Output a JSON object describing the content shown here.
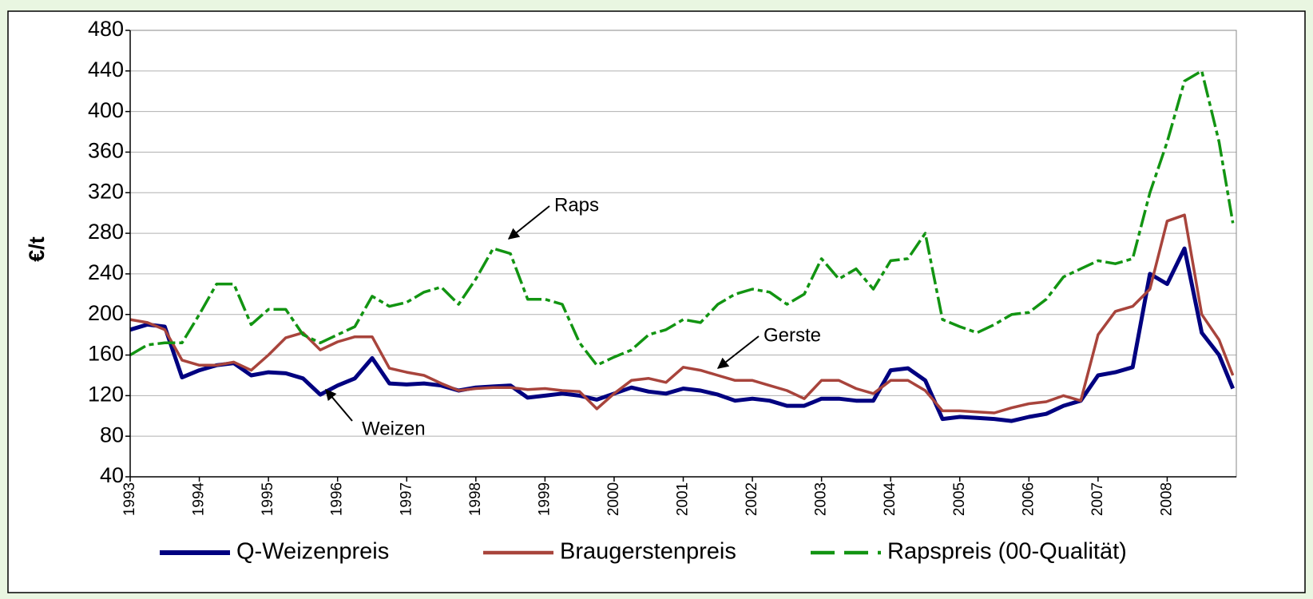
{
  "chart_data": {
    "type": "line",
    "ylabel": "€/t",
    "x": [
      1993,
      1993.25,
      1993.5,
      1993.75,
      1994,
      1994.25,
      1994.5,
      1994.75,
      1995,
      1995.25,
      1995.5,
      1995.75,
      1996,
      1996.25,
      1996.5,
      1996.75,
      1997,
      1997.25,
      1997.5,
      1997.75,
      1998,
      1998.25,
      1998.5,
      1998.75,
      1999,
      1999.25,
      1999.5,
      1999.75,
      2000,
      2000.25,
      2000.5,
      2000.75,
      2001,
      2001.25,
      2001.5,
      2001.75,
      2002,
      2002.25,
      2002.5,
      2002.75,
      2003,
      2003.25,
      2003.5,
      2003.75,
      2004,
      2004.25,
      2004.5,
      2004.75,
      2005,
      2005.25,
      2005.5,
      2005.75,
      2006,
      2006.25,
      2006.5,
      2006.75,
      2007,
      2007.25,
      2007.5,
      2007.75,
      2008,
      2008.25,
      2008.5,
      2008.75,
      2008.95
    ],
    "series": [
      {
        "name": "Q-Weizenpreis",
        "color": "#000080",
        "style": "solid",
        "width": 5,
        "values": [
          185,
          190,
          188,
          138,
          145,
          150,
          152,
          140,
          143,
          142,
          137,
          121,
          130,
          137,
          157,
          132,
          131,
          132,
          130,
          125,
          128,
          129,
          130,
          118,
          120,
          122,
          120,
          116,
          122,
          128,
          124,
          122,
          127,
          125,
          121,
          115,
          117,
          115,
          110,
          110,
          117,
          117,
          115,
          115,
          145,
          147,
          135,
          97,
          99,
          98,
          97,
          95,
          99,
          102,
          110,
          115,
          140,
          143,
          148,
          240,
          230,
          265,
          182,
          160,
          127
        ]
      },
      {
        "name": "Braugerstenpreis",
        "color": "#a8443c",
        "style": "solid",
        "width": 3.5,
        "values": [
          195,
          192,
          185,
          155,
          150,
          150,
          153,
          145,
          160,
          177,
          182,
          165,
          173,
          178,
          178,
          147,
          143,
          140,
          132,
          125,
          127,
          128,
          128,
          126,
          127,
          125,
          124,
          107,
          122,
          135,
          137,
          133,
          148,
          145,
          140,
          135,
          135,
          130,
          125,
          117,
          135,
          135,
          127,
          122,
          135,
          135,
          125,
          105,
          105,
          104,
          103,
          108,
          112,
          114,
          120,
          115,
          180,
          203,
          208,
          225,
          292,
          298,
          200,
          175,
          140
        ]
      },
      {
        "name": "Rapspreis (00-Qualität)",
        "color": "#129412",
        "style": "dashed",
        "width": 3.5,
        "values": [
          160,
          170,
          172,
          172,
          200,
          230,
          230,
          190,
          205,
          205,
          180,
          172,
          180,
          188,
          218,
          208,
          212,
          222,
          227,
          210,
          235,
          265,
          260,
          215,
          215,
          210,
          172,
          150,
          158,
          165,
          180,
          185,
          195,
          192,
          210,
          220,
          225,
          222,
          210,
          220,
          255,
          235,
          245,
          225,
          253,
          255,
          280,
          195,
          188,
          182,
          190,
          200,
          202,
          215,
          237,
          245,
          253,
          250,
          255,
          320,
          370,
          430,
          440,
          370,
          290
        ]
      }
    ],
    "xlim": [
      1993,
      2009
    ],
    "xticks": [
      1993,
      1994,
      1995,
      1996,
      1997,
      1998,
      1999,
      2000,
      2001,
      2002,
      2003,
      2004,
      2005,
      2006,
      2007,
      2008
    ],
    "ylim": [
      40,
      480
    ],
    "yticks": [
      40,
      80,
      120,
      160,
      200,
      240,
      280,
      320,
      360,
      400,
      440,
      480
    ],
    "grid": true,
    "legend": "bottom",
    "annotations": [
      "Raps",
      "Gerste",
      "Weizen"
    ]
  }
}
